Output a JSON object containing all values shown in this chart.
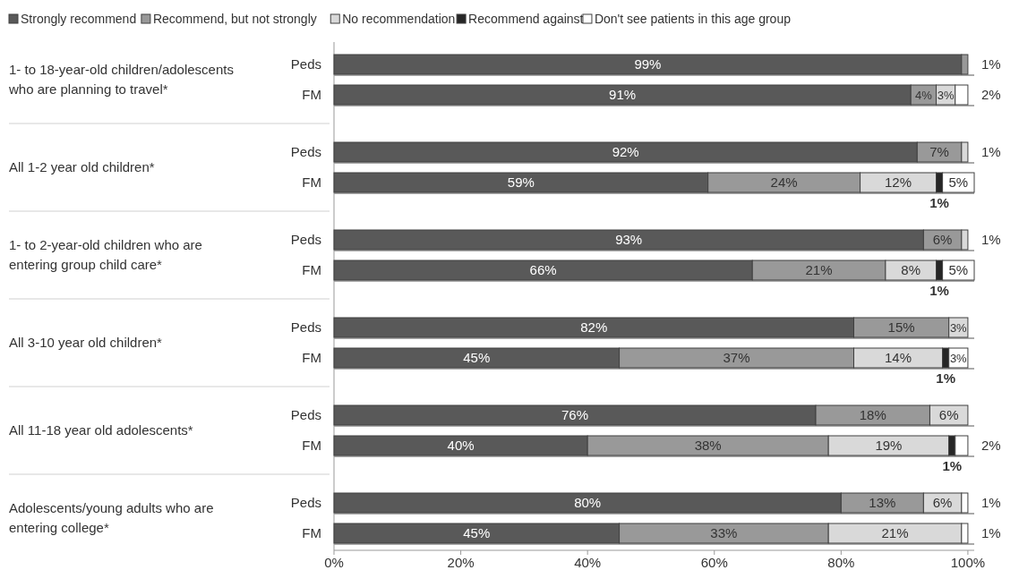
{
  "chart_data": {
    "type": "bar",
    "orientation": "horizontal",
    "stacked": true,
    "legend": "top",
    "categories": [
      "Peds",
      "FM",
      "Peds",
      "FM",
      "Peds",
      "FM",
      "Peds",
      "FM",
      "Peds",
      "FM",
      "Peds",
      "FM"
    ],
    "annotations": [
      "1- to 18-year-old children/adolescents who are planning to travel*",
      "All 1-2 year old children*",
      "1- to 2-year-old children who are entering group child care*",
      "All 3-10 year old children*",
      "All 11-18 year old adolescents*",
      "Adolescents/young adults who are entering college*"
    ],
    "xlim": [
      0,
      101
    ],
    "xticks": [
      {
        "value": 0,
        "label": "0%"
      },
      {
        "value": 20,
        "label": "20%"
      },
      {
        "value": 40,
        "label": "40%"
      },
      {
        "value": 60,
        "label": "60%"
      },
      {
        "value": 80,
        "label": "80%"
      },
      {
        "value": 100,
        "label": "100%"
      }
    ],
    "series": [
      {
        "name": "Strongly recommend",
        "color": "#595959",
        "values": [
          99,
          91,
          92,
          59,
          93,
          66,
          82,
          45,
          76,
          40,
          80,
          45
        ],
        "value_labels": [
          "99%",
          "91%",
          "92%",
          "59%",
          "93%",
          "66%",
          "82%",
          "45%",
          "76%",
          "40%",
          "80%",
          "45%"
        ]
      },
      {
        "name": "Recommend, but not strongly",
        "color": "#999999",
        "values": [
          1,
          4,
          7,
          24,
          6,
          21,
          15,
          37,
          18,
          38,
          13,
          33
        ],
        "value_labels": [
          "1%",
          "4%",
          "7%",
          "24%",
          "6%",
          "21%",
          "15%",
          "37%",
          "18%",
          "38%",
          "13%",
          "33%"
        ]
      },
      {
        "name": "No recommendation",
        "color": "#d9d9d9",
        "values": [
          0,
          3,
          1,
          12,
          1,
          8,
          3,
          14,
          6,
          19,
          6,
          21
        ],
        "value_labels": [
          null,
          "3%",
          "1%",
          "12%",
          "1%",
          "8%",
          "3%",
          "14%",
          "6%",
          "19%",
          "6%",
          "21%"
        ]
      },
      {
        "name": "Recommend against",
        "color": "#262626",
        "values": [
          0,
          0,
          0,
          1,
          0,
          1,
          0,
          1,
          0,
          1,
          0,
          0
        ],
        "value_labels": [
          null,
          null,
          null,
          "1%",
          null,
          "1%",
          null,
          "1%",
          null,
          "1%",
          null,
          null
        ]
      },
      {
        "name": "Don't see patients in this age group",
        "color": "#ffffff",
        "values": [
          0,
          2,
          0,
          5,
          0,
          5,
          0,
          3,
          0,
          2,
          1,
          1
        ],
        "value_labels": [
          null,
          "2%",
          null,
          "5%",
          null,
          "5%",
          null,
          "3%",
          null,
          "2%",
          "1%",
          "1%"
        ]
      }
    ]
  }
}
